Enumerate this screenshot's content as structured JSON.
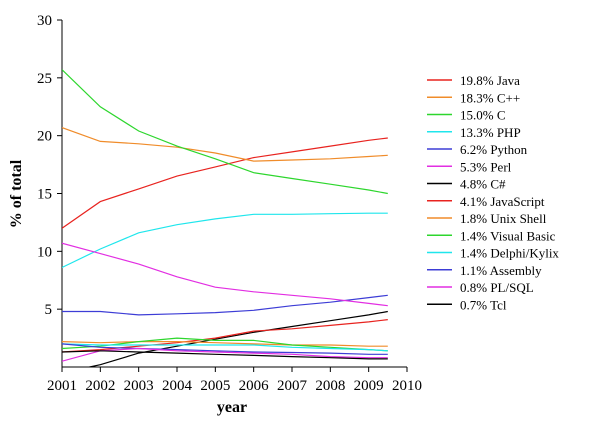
{
  "chart_data": {
    "type": "line",
    "title": "",
    "xlabel": "year",
    "ylabel": "% of total",
    "xlim": [
      2001,
      2010
    ],
    "ylim": [
      0,
      30
    ],
    "xticks": [
      2001,
      2002,
      2003,
      2004,
      2005,
      2006,
      2007,
      2008,
      2009,
      2010
    ],
    "yticks": [
      5,
      10,
      15,
      20,
      25,
      30
    ],
    "grid": false,
    "legend_position": "right",
    "x": [
      2001,
      2002,
      2003,
      2004,
      2005,
      2006,
      2007,
      2008,
      2009,
      2009.5
    ],
    "series": [
      {
        "name": "19.8% Java",
        "color": "#e8231f",
        "values": [
          12.0,
          14.3,
          15.4,
          16.5,
          17.3,
          18.1,
          18.6,
          19.1,
          19.6,
          19.8
        ]
      },
      {
        "name": "18.3% C++",
        "color": "#f08c2a",
        "values": [
          20.7,
          19.5,
          19.3,
          19.0,
          18.5,
          17.8,
          17.9,
          18.0,
          18.2,
          18.3
        ]
      },
      {
        "name": "15.0% C",
        "color": "#2dd62d",
        "values": [
          25.7,
          22.5,
          20.4,
          19.1,
          18.0,
          16.8,
          16.3,
          15.8,
          15.3,
          15.0
        ]
      },
      {
        "name": "13.3% PHP",
        "color": "#1fe6ec",
        "values": [
          8.6,
          10.2,
          11.6,
          12.3,
          12.8,
          13.2,
          13.2,
          13.25,
          13.3,
          13.3
        ]
      },
      {
        "name": "6.2% Python",
        "color": "#3d3dd6",
        "values": [
          4.8,
          4.8,
          4.5,
          4.6,
          4.7,
          4.9,
          5.3,
          5.6,
          6.0,
          6.2
        ]
      },
      {
        "name": "5.3% Perl",
        "color": "#e22ee2",
        "values": [
          10.7,
          9.8,
          8.9,
          7.8,
          6.9,
          6.5,
          6.2,
          5.9,
          5.5,
          5.3
        ]
      },
      {
        "name": "4.8% C#",
        "color": "#000000",
        "values": [
          -0.5,
          0.2,
          1.2,
          1.8,
          2.4,
          3.0,
          3.5,
          4.0,
          4.5,
          4.8
        ]
      },
      {
        "name": "4.1% JavaScript",
        "color": "#e8231f",
        "values": [
          1.3,
          1.5,
          1.8,
          2.1,
          2.5,
          3.1,
          3.3,
          3.6,
          3.9,
          4.1
        ]
      },
      {
        "name": "1.8% Unix Shell",
        "color": "#f08c2a",
        "values": [
          2.2,
          2.1,
          2.2,
          2.2,
          2.1,
          2.0,
          1.9,
          1.9,
          1.8,
          1.8
        ]
      },
      {
        "name": "1.4% Visual Basic",
        "color": "#2dd62d",
        "values": [
          1.6,
          1.8,
          2.2,
          2.5,
          2.3,
          2.3,
          1.9,
          1.7,
          1.5,
          1.4
        ]
      },
      {
        "name": "1.4% Delphi/Kylix",
        "color": "#1fe6ec",
        "values": [
          2.0,
          1.9,
          1.9,
          1.9,
          1.9,
          1.9,
          1.7,
          1.6,
          1.5,
          1.4
        ]
      },
      {
        "name": "1.1% Assembly",
        "color": "#3d3dd6",
        "values": [
          2.0,
          1.7,
          1.6,
          1.5,
          1.4,
          1.3,
          1.25,
          1.2,
          1.1,
          1.1
        ]
      },
      {
        "name": "0.8% PL/SQL",
        "color": "#e22ee2",
        "values": [
          0.5,
          1.4,
          1.6,
          1.4,
          1.3,
          1.2,
          1.1,
          0.9,
          0.8,
          0.8
        ]
      },
      {
        "name": "0.7% Tcl",
        "color": "#000000",
        "values": [
          1.3,
          1.4,
          1.3,
          1.2,
          1.1,
          1.0,
          0.9,
          0.8,
          0.7,
          0.7
        ]
      }
    ]
  }
}
